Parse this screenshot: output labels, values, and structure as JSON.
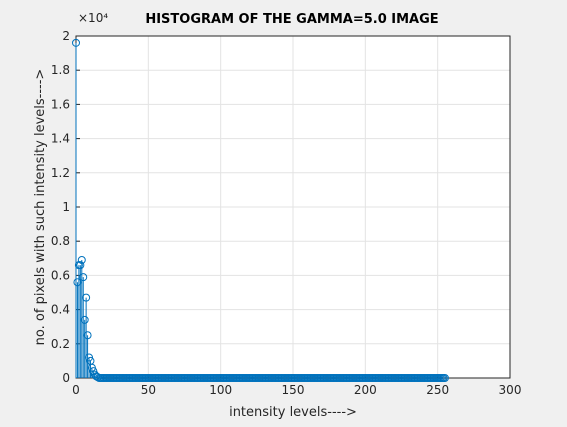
{
  "chart_data": {
    "type": "stem",
    "title": "HISTOGRAM OF THE GAMMA=5.0 IMAGE",
    "xlabel": "intensity levels---->",
    "ylabel": "no. of pixels with such intensity levels---->",
    "exponent_label": "×10⁴",
    "color": "#0072bd",
    "grid": true,
    "xlim": [
      0,
      300
    ],
    "xticks": [
      0,
      50,
      100,
      150,
      200,
      250,
      300
    ],
    "ylim": [
      0,
      2
    ],
    "yticks": [
      0,
      0.2,
      0.4,
      0.6,
      0.8,
      1,
      1.2,
      1.4,
      1.6,
      1.8,
      2
    ],
    "x": [
      0,
      1,
      2,
      3,
      4,
      5,
      6,
      7,
      8,
      9,
      10,
      11,
      12,
      13,
      14,
      15,
      16,
      17,
      18,
      19,
      20,
      21,
      22,
      23,
      24,
      25,
      26,
      27,
      28,
      29,
      30,
      31,
      32,
      33,
      34,
      35,
      36,
      37,
      38,
      39,
      40,
      41,
      42,
      43,
      44,
      45,
      46,
      47,
      48,
      49,
      50,
      51,
      52,
      53,
      54,
      55,
      56,
      57,
      58,
      59,
      60,
      61,
      62,
      63,
      64,
      65,
      66,
      67,
      68,
      69,
      70,
      71,
      72,
      73,
      74,
      75,
      76,
      77,
      78,
      79,
      80,
      81,
      82,
      83,
      84,
      85,
      86,
      87,
      88,
      89,
      90,
      91,
      92,
      93,
      94,
      95,
      96,
      97,
      98,
      99,
      100,
      101,
      102,
      103,
      104,
      105,
      106,
      107,
      108,
      109,
      110,
      111,
      112,
      113,
      114,
      115,
      116,
      117,
      118,
      119,
      120,
      121,
      122,
      123,
      124,
      125,
      126,
      127,
      128,
      129,
      130,
      131,
      132,
      133,
      134,
      135,
      136,
      137,
      138,
      139,
      140,
      141,
      142,
      143,
      144,
      145,
      146,
      147,
      148,
      149,
      150,
      151,
      152,
      153,
      154,
      155,
      156,
      157,
      158,
      159,
      160,
      161,
      162,
      163,
      164,
      165,
      166,
      167,
      168,
      169,
      170,
      171,
      172,
      173,
      174,
      175,
      176,
      177,
      178,
      179,
      180,
      181,
      182,
      183,
      184,
      185,
      186,
      187,
      188,
      189,
      190,
      191,
      192,
      193,
      194,
      195,
      196,
      197,
      198,
      199,
      200,
      201,
      202,
      203,
      204,
      205,
      206,
      207,
      208,
      209,
      210,
      211,
      212,
      213,
      214,
      215,
      216,
      217,
      218,
      219,
      220,
      221,
      222,
      223,
      224,
      225,
      226,
      227,
      228,
      229,
      230,
      231,
      232,
      233,
      234,
      235,
      236,
      237,
      238,
      239,
      240,
      241,
      242,
      243,
      244,
      245,
      246,
      247,
      248,
      249,
      250,
      251,
      252,
      253,
      254,
      255
    ],
    "values": [
      1.96,
      0.56,
      0.66,
      0.66,
      0.69,
      0.59,
      0.34,
      0.47,
      0.25,
      0.12,
      0.1,
      0.06,
      0.04,
      0.02,
      0.01,
      0.005,
      0,
      0,
      0,
      0,
      0,
      0,
      0,
      0,
      0,
      0,
      0,
      0,
      0,
      0,
      0,
      0,
      0,
      0,
      0,
      0,
      0,
      0,
      0,
      0,
      0,
      0,
      0,
      0,
      0,
      0,
      0,
      0,
      0,
      0,
      0,
      0,
      0,
      0,
      0,
      0,
      0,
      0,
      0,
      0,
      0,
      0,
      0,
      0,
      0,
      0,
      0,
      0,
      0,
      0,
      0,
      0,
      0,
      0,
      0,
      0,
      0,
      0,
      0,
      0,
      0,
      0,
      0,
      0,
      0,
      0,
      0,
      0,
      0,
      0,
      0,
      0,
      0,
      0,
      0,
      0,
      0,
      0,
      0,
      0,
      0,
      0,
      0,
      0,
      0,
      0,
      0,
      0,
      0,
      0,
      0,
      0,
      0,
      0,
      0,
      0,
      0,
      0,
      0,
      0,
      0,
      0,
      0,
      0,
      0,
      0,
      0,
      0,
      0,
      0,
      0,
      0,
      0,
      0,
      0,
      0,
      0,
      0,
      0,
      0,
      0,
      0,
      0,
      0,
      0,
      0,
      0,
      0,
      0,
      0,
      0,
      0,
      0,
      0,
      0,
      0,
      0,
      0,
      0,
      0,
      0,
      0,
      0,
      0,
      0,
      0,
      0,
      0,
      0,
      0,
      0,
      0,
      0,
      0,
      0,
      0,
      0,
      0,
      0,
      0,
      0,
      0,
      0,
      0,
      0,
      0,
      0,
      0,
      0,
      0,
      0,
      0,
      0,
      0,
      0,
      0,
      0,
      0,
      0,
      0,
      0,
      0,
      0,
      0,
      0,
      0,
      0,
      0,
      0,
      0,
      0,
      0,
      0,
      0,
      0,
      0,
      0,
      0,
      0,
      0,
      0,
      0,
      0,
      0,
      0,
      0,
      0,
      0,
      0,
      0,
      0,
      0,
      0,
      0,
      0,
      0,
      0,
      0,
      0,
      0,
      0,
      0,
      0,
      0,
      0,
      0,
      0,
      0,
      0,
      0,
      0,
      0,
      0,
      0,
      0,
      0
    ]
  }
}
